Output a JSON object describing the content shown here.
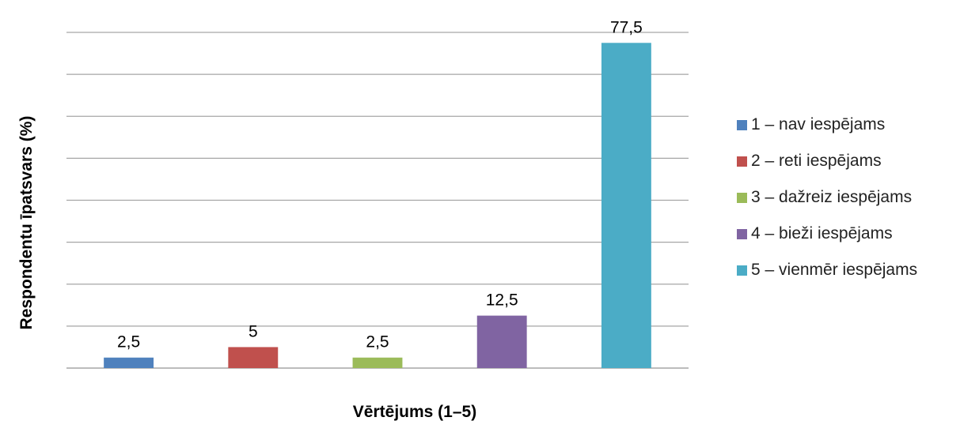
{
  "chart_data": {
    "type": "bar",
    "title": "",
    "xlabel": "Vērtējums (1–5)",
    "ylabel": "Respondentu īpatsvars (%)",
    "ylim": [
      0,
      80
    ],
    "grid": true,
    "gridline_count": 8,
    "y_tick_labels_shown": false,
    "x_tick_labels_shown": false,
    "legend_position": "right",
    "categories": [
      "1 – nav iespējams",
      "2 – reti iespējams",
      "3 – dažreiz iespējams",
      "4 – bieži iespējams",
      "5 – vienmēr iespējams"
    ],
    "values": [
      2.5,
      5,
      2.5,
      12.5,
      77.5
    ],
    "data_labels": [
      "2,5",
      "5",
      "2,5",
      "12,5",
      "77,5"
    ],
    "colors": [
      "#4F81BD",
      "#C0504D",
      "#9BBB59",
      "#8064A2",
      "#4BACC6"
    ],
    "gridline_color": "#A6A6A6"
  }
}
